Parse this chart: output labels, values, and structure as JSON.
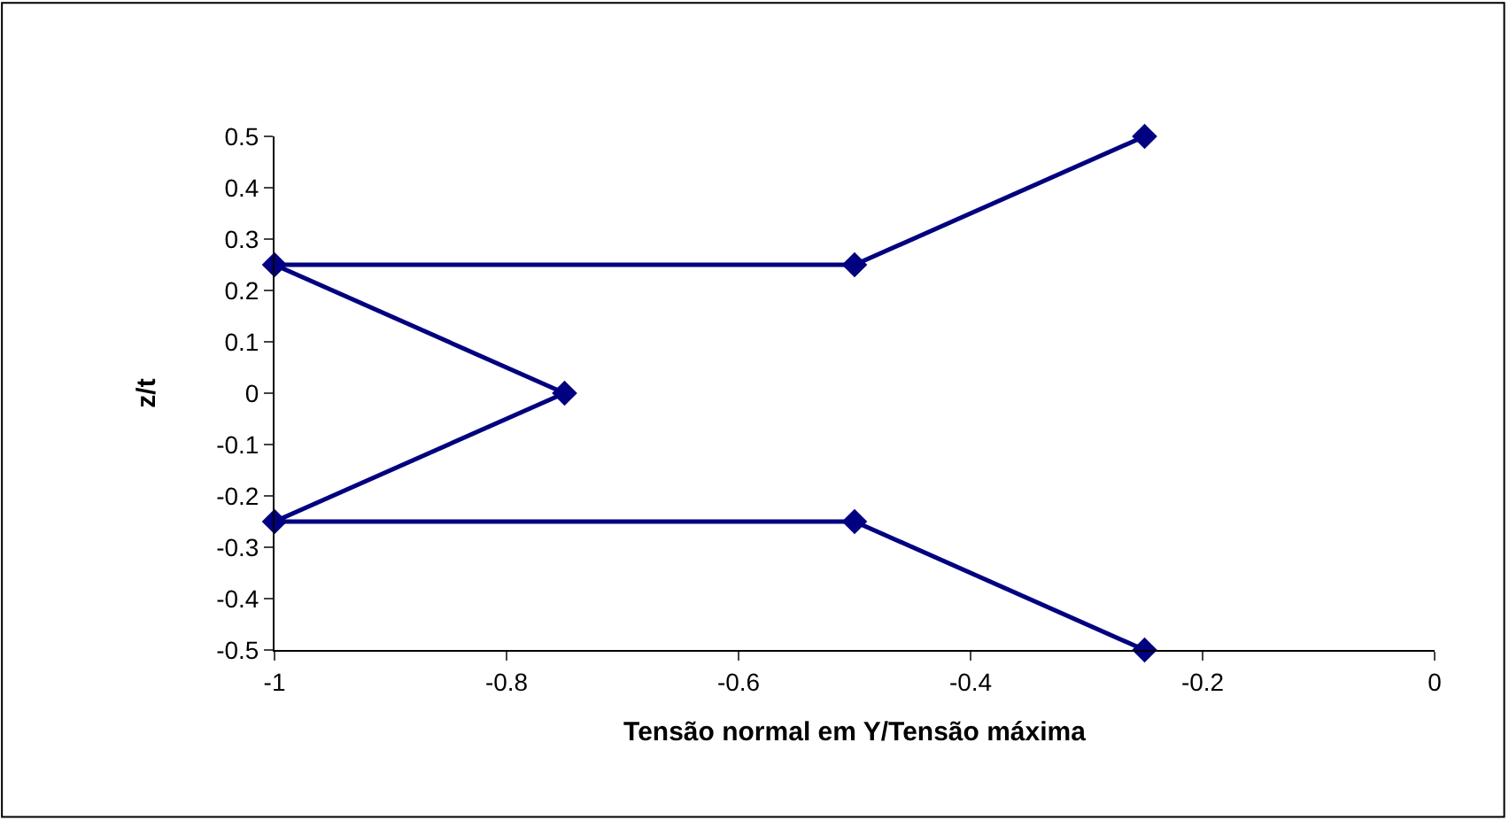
{
  "chart_data": {
    "type": "line",
    "xlabel": "Tensão normal em Y/Tensão máxima",
    "ylabel": "z/t",
    "x": [
      -0.25,
      -0.5,
      -1,
      -0.75,
      -1,
      -0.5,
      -0.25
    ],
    "series": [
      {
        "color": "#000080",
        "values": [
          0.5,
          0.25,
          0.25,
          0,
          -0.25,
          -0.25,
          -0.5
        ]
      }
    ],
    "xlim": [
      -1,
      0
    ],
    "xticks": [
      -1,
      -0.8,
      -0.6,
      -0.4,
      -0.2,
      0
    ],
    "ylim": [
      -0.5,
      0.5
    ],
    "yticks": [
      -0.5,
      -0.4,
      -0.3,
      -0.2,
      -0.1,
      0,
      0.1,
      0.2,
      0.3,
      0.4,
      0.5
    ],
    "marker": "diamond",
    "line_style": "solid"
  }
}
